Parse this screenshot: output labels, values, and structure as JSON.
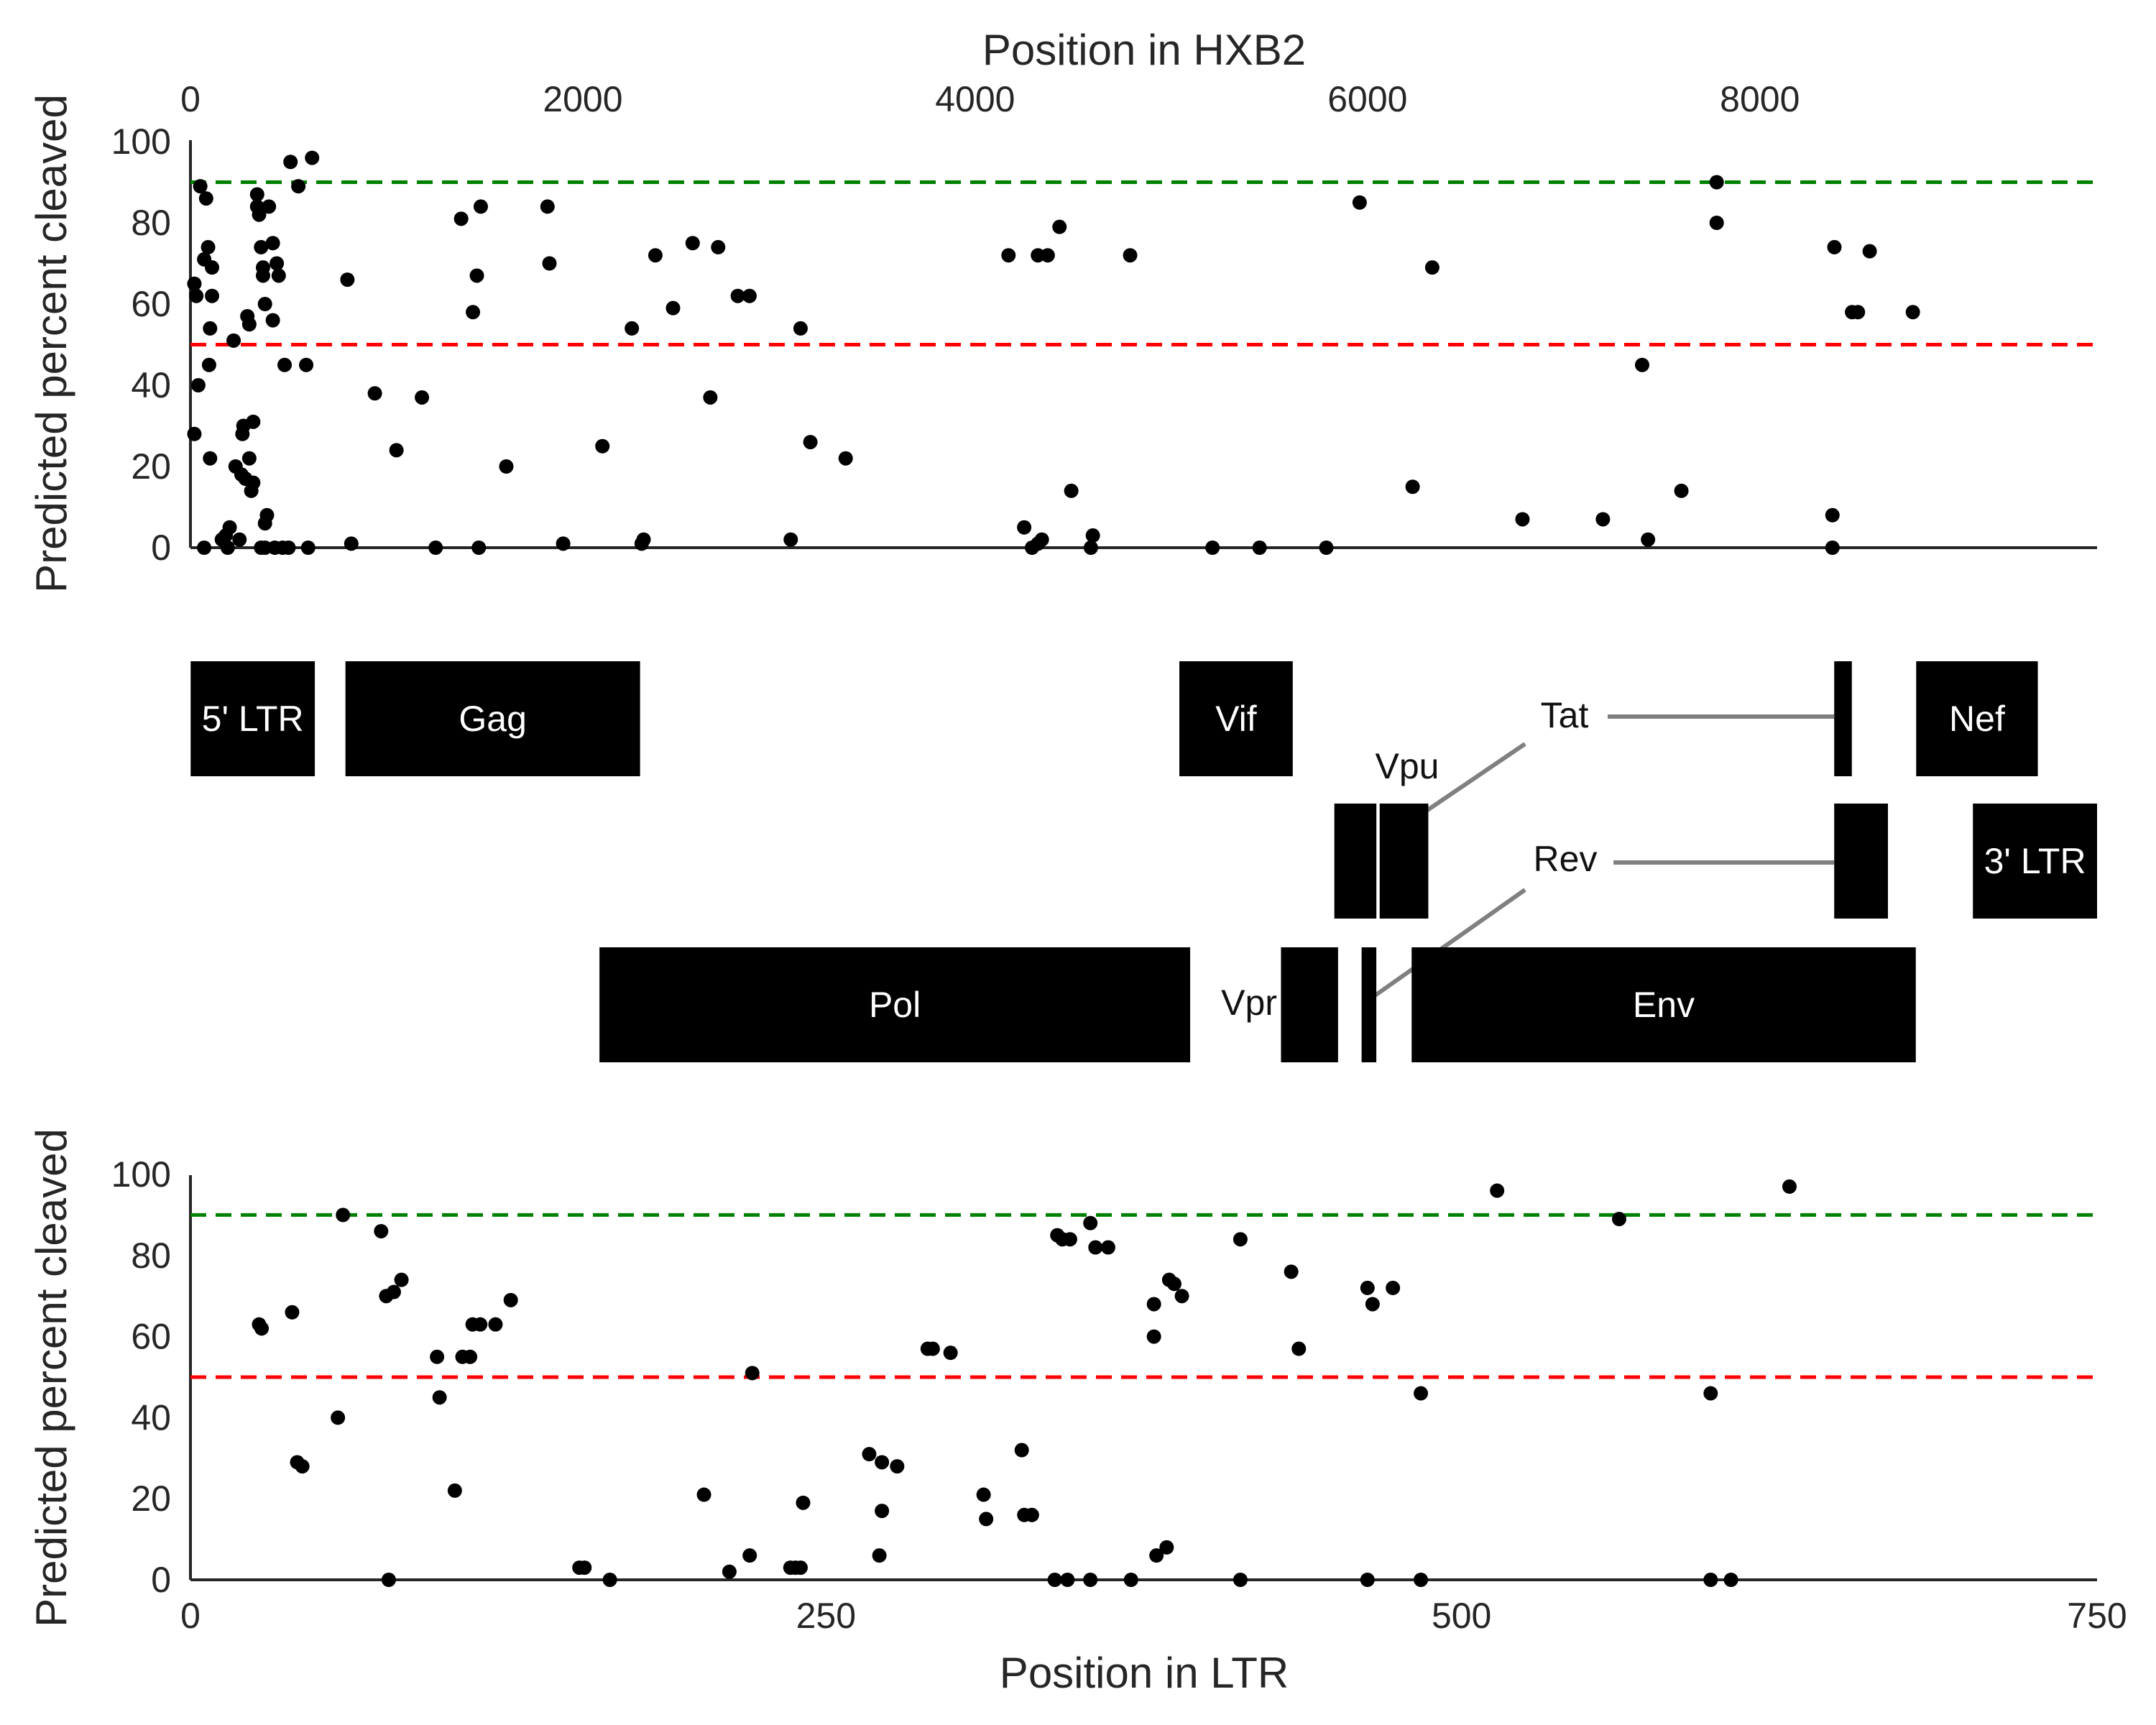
{
  "chart_data": [
    {
      "type": "scatter",
      "xlabel": "Position in HXB2",
      "ylabel": "Predicted percent cleaved",
      "xlim": [
        0,
        9719
      ],
      "ylim": [
        0,
        100
      ],
      "xticks": [
        "0",
        "2000",
        "4000",
        "6000",
        "8000"
      ],
      "yticks": [
        "0",
        "20",
        "40",
        "60",
        "80",
        "100"
      ],
      "reference_lines": [
        {
          "y": 90,
          "color": "#008000",
          "style": "dashed"
        },
        {
          "y": 50,
          "color": "#ff0000",
          "style": "dashed"
        }
      ],
      "point_color": "#000000",
      "points": [
        [
          50,
          89
        ],
        [
          80,
          86
        ],
        [
          20,
          65
        ],
        [
          30,
          62
        ],
        [
          90,
          74
        ],
        [
          70,
          71
        ],
        [
          110,
          69
        ],
        [
          40,
          40
        ],
        [
          100,
          54
        ],
        [
          20,
          28
        ],
        [
          110,
          62
        ],
        [
          100,
          22
        ],
        [
          95,
          45
        ],
        [
          70,
          0
        ],
        [
          160,
          2
        ],
        [
          180,
          3
        ],
        [
          190,
          0
        ],
        [
          200,
          5
        ],
        [
          220,
          51
        ],
        [
          230,
          20
        ],
        [
          250,
          2
        ],
        [
          260,
          18
        ],
        [
          270,
          30
        ],
        [
          265,
          28
        ],
        [
          280,
          17
        ],
        [
          290,
          57
        ],
        [
          300,
          55
        ],
        [
          300,
          22
        ],
        [
          310,
          14
        ],
        [
          320,
          31
        ],
        [
          320,
          16
        ],
        [
          340,
          87
        ],
        [
          340,
          84
        ],
        [
          350,
          82
        ],
        [
          360,
          74
        ],
        [
          360,
          0
        ],
        [
          370,
          69
        ],
        [
          370,
          67
        ],
        [
          380,
          60
        ],
        [
          380,
          6
        ],
        [
          380,
          0
        ],
        [
          390,
          8
        ],
        [
          400,
          84
        ],
        [
          420,
          75
        ],
        [
          420,
          56
        ],
        [
          430,
          0
        ],
        [
          440,
          70
        ],
        [
          450,
          67
        ],
        [
          470,
          0
        ],
        [
          480,
          45
        ],
        [
          500,
          0
        ],
        [
          510,
          95
        ],
        [
          550,
          89
        ],
        [
          590,
          45
        ],
        [
          600,
          0
        ],
        [
          620,
          96
        ],
        [
          800,
          66
        ],
        [
          820,
          1
        ],
        [
          940,
          38
        ],
        [
          1050,
          24
        ],
        [
          1180,
          37
        ],
        [
          1250,
          0
        ],
        [
          1380,
          81
        ],
        [
          1440,
          58
        ],
        [
          1460,
          67
        ],
        [
          1470,
          0
        ],
        [
          1480,
          84
        ],
        [
          1610,
          20
        ],
        [
          1820,
          84
        ],
        [
          1830,
          70
        ],
        [
          1900,
          1
        ],
        [
          2100,
          25
        ],
        [
          2250,
          54
        ],
        [
          2300,
          1
        ],
        [
          2310,
          2
        ],
        [
          2370,
          72
        ],
        [
          2460,
          59
        ],
        [
          2560,
          75
        ],
        [
          2650,
          37
        ],
        [
          2690,
          74
        ],
        [
          2790,
          62
        ],
        [
          2850,
          62
        ],
        [
          3060,
          2
        ],
        [
          3110,
          54
        ],
        [
          3160,
          26
        ],
        [
          3340,
          22
        ],
        [
          4170,
          72
        ],
        [
          4250,
          5
        ],
        [
          4290,
          0
        ],
        [
          4320,
          1
        ],
        [
          4340,
          2
        ],
        [
          4320,
          72
        ],
        [
          4370,
          72
        ],
        [
          4430,
          79
        ],
        [
          4490,
          14
        ],
        [
          4590,
          0
        ],
        [
          4600,
          3
        ],
        [
          4790,
          72
        ],
        [
          5210,
          0
        ],
        [
          5450,
          0
        ],
        [
          5790,
          0
        ],
        [
          5960,
          85
        ],
        [
          6230,
          15
        ],
        [
          6330,
          69
        ],
        [
          6790,
          7
        ],
        [
          7200,
          7
        ],
        [
          7400,
          45
        ],
        [
          7430,
          2
        ],
        [
          7600,
          14
        ],
        [
          7780,
          90
        ],
        [
          7780,
          80
        ],
        [
          8370,
          8
        ],
        [
          8370,
          0
        ],
        [
          8380,
          74
        ],
        [
          8470,
          58
        ],
        [
          8500,
          58
        ],
        [
          8560,
          73
        ],
        [
          8780,
          58
        ]
      ]
    },
    {
      "type": "gene_map",
      "genes": [
        {
          "name": "5' LTR",
          "start": 1,
          "end": 634,
          "row": 0,
          "label_inside": true
        },
        {
          "name": "Gag",
          "start": 790,
          "end": 2292,
          "row": 0,
          "label_inside": true
        },
        {
          "name": "Vif",
          "start": 5041,
          "end": 5619,
          "row": 0,
          "label_inside": true
        },
        {
          "name": "Tat",
          "start": 5831,
          "end": 6045,
          "row": 1,
          "label_inside": false
        },
        {
          "name": "",
          "start": 8379,
          "end": 8469,
          "row": 0,
          "label_inside": false
        },
        {
          "name": "Nef",
          "start": 8797,
          "end": 9417,
          "row": 0,
          "label_inside": true
        },
        {
          "name": "Vpu",
          "start": 6062,
          "end": 6310,
          "row": 1,
          "label_inside": false
        },
        {
          "name": "Rev",
          "start": 5970,
          "end": 6045,
          "row": 1,
          "label_inside": false
        },
        {
          "name": "",
          "start": 8379,
          "end": 8653,
          "row": 1,
          "label_inside": false
        },
        {
          "name": "3' LTR",
          "start": 9086,
          "end": 9719,
          "row": 1,
          "label_inside": true
        },
        {
          "name": "Pol",
          "start": 2085,
          "end": 5096,
          "row": 2,
          "label_inside": true
        },
        {
          "name": "Vpr",
          "start": 5559,
          "end": 5850,
          "row": 2,
          "label_inside": false
        },
        {
          "name": "",
          "start": 5970,
          "end": 6045,
          "row": 2,
          "label_inside": false
        },
        {
          "name": "Env",
          "start": 6225,
          "end": 8795,
          "row": 2,
          "label_inside": true
        }
      ]
    },
    {
      "type": "scatter",
      "xlabel": "Position in LTR",
      "ylabel": "Predicted percent cleaved",
      "xlim": [
        0,
        750
      ],
      "ylim": [
        0,
        100
      ],
      "xticks": [
        "0",
        "250",
        "500",
        "750"
      ],
      "yticks": [
        "0",
        "20",
        "40",
        "60",
        "80",
        "100"
      ],
      "reference_lines": [
        {
          "y": 90,
          "color": "#008000",
          "style": "dashed"
        },
        {
          "y": 50,
          "color": "#ff0000",
          "style": "dashed"
        }
      ],
      "point_color": "#000000",
      "points": [
        [
          27,
          63
        ],
        [
          28,
          62
        ],
        [
          40,
          66
        ],
        [
          42,
          29
        ],
        [
          44,
          28
        ],
        [
          58,
          40
        ],
        [
          60,
          90
        ],
        [
          75,
          86
        ],
        [
          77,
          70
        ],
        [
          78,
          0
        ],
        [
          80,
          71
        ],
        [
          83,
          74
        ],
        [
          97,
          55
        ],
        [
          98,
          45
        ],
        [
          104,
          22
        ],
        [
          107,
          55
        ],
        [
          110,
          55
        ],
        [
          111,
          63
        ],
        [
          114,
          63
        ],
        [
          120,
          63
        ],
        [
          126,
          69
        ],
        [
          153,
          3
        ],
        [
          155,
          3
        ],
        [
          165,
          0
        ],
        [
          202,
          21
        ],
        [
          212,
          2
        ],
        [
          220,
          6
        ],
        [
          221,
          51
        ],
        [
          236,
          3
        ],
        [
          238,
          3
        ],
        [
          240,
          3
        ],
        [
          241,
          19
        ],
        [
          267,
          31
        ],
        [
          271,
          6
        ],
        [
          272,
          17
        ],
        [
          272,
          29
        ],
        [
          278,
          28
        ],
        [
          290,
          57
        ],
        [
          292,
          57
        ],
        [
          299,
          56
        ],
        [
          312,
          21
        ],
        [
          313,
          15
        ],
        [
          327,
          32
        ],
        [
          328,
          16
        ],
        [
          331,
          16
        ],
        [
          340,
          0
        ],
        [
          341,
          85
        ],
        [
          343,
          84
        ],
        [
          346,
          84
        ],
        [
          345,
          0
        ],
        [
          354,
          88
        ],
        [
          354,
          0
        ],
        [
          356,
          82
        ],
        [
          361,
          82
        ],
        [
          370,
          0
        ],
        [
          379,
          68
        ],
        [
          379,
          60
        ],
        [
          380,
          6
        ],
        [
          384,
          8
        ],
        [
          385,
          74
        ],
        [
          387,
          73
        ],
        [
          390,
          70
        ],
        [
          413,
          84
        ],
        [
          413,
          0
        ],
        [
          433,
          76
        ],
        [
          436,
          57
        ],
        [
          463,
          72
        ],
        [
          463,
          0
        ],
        [
          465,
          68
        ],
        [
          473,
          72
        ],
        [
          484,
          46
        ],
        [
          484,
          0
        ],
        [
          514,
          96
        ],
        [
          562,
          89
        ],
        [
          598,
          46
        ],
        [
          598,
          0
        ],
        [
          606,
          0
        ],
        [
          629,
          97
        ]
      ]
    }
  ]
}
